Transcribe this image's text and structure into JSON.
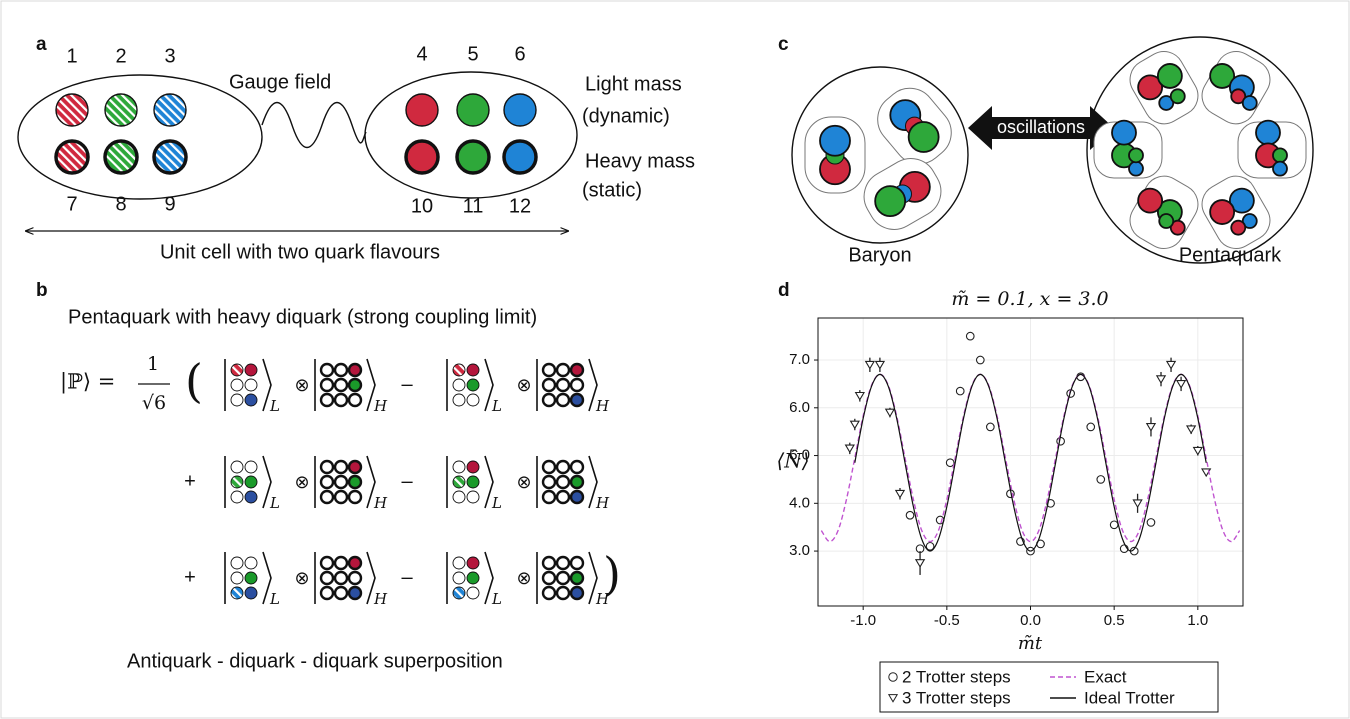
{
  "panel_a": {
    "label": "a",
    "quark_labels": [
      "1",
      "2",
      "3",
      "4",
      "5",
      "6",
      "7",
      "8",
      "9",
      "10",
      "11",
      "12"
    ],
    "gauge_field": "Gauge field",
    "light_mass": [
      "Light mass",
      "(dynamic)"
    ],
    "heavy_mass": [
      "Heavy mass",
      "(static)"
    ],
    "caption": "Unit cell with two quark flavours"
  },
  "panel_b": {
    "label": "b",
    "heading": "Pentaquark with heavy diquark (strong coupling limit)",
    "state": "|ℙ⟩ =",
    "numerator": "1",
    "denominator": "√6",
    "open_paren": "(",
    "close_paren": ")",
    "tensor": "⊗",
    "minus": "–",
    "plus": "+",
    "sub_light": "L",
    "sub_heavy": "H",
    "caption": "Antiquark - diquark - diquark superposition"
  },
  "panel_c": {
    "label": "c",
    "arrow_text": "oscillations",
    "left": "Baryon",
    "right": "Pentaquark"
  },
  "panel_d": {
    "label": "d"
  },
  "chart_data": {
    "type": "line",
    "title": "m̃ = 0.1, x = 3.0",
    "x_label": "m̃t",
    "y_label": "⟨N̂⟩",
    "xlim": [
      -1.27,
      1.27
    ],
    "ylim": [
      1.85,
      7.88
    ],
    "xticks": [
      {
        "value": -1,
        "label": "-1.0"
      },
      {
        "value": -0.5,
        "label": "-0.5"
      },
      {
        "value": 0,
        "label": "0.0"
      },
      {
        "value": 0.5,
        "label": "0.5"
      },
      {
        "value": 1,
        "label": "1.0"
      }
    ],
    "yticks": [
      {
        "value": 3,
        "label": "3.0"
      },
      {
        "value": 4,
        "label": "4.0"
      },
      {
        "value": 5,
        "label": "5.0"
      },
      {
        "value": 6,
        "label": "6.0"
      },
      {
        "value": 7,
        "label": "7.0"
      }
    ],
    "grid": true,
    "series": [
      {
        "name": "2 Trotter steps",
        "color": "#222222",
        "marker": "circle",
        "x": [
          -0.72,
          -0.66,
          -0.6,
          -0.54,
          -0.48,
          -0.42,
          -0.36,
          -0.3,
          -0.24,
          -0.12,
          -0.06,
          0,
          0.06,
          0.12,
          0.18,
          0.24,
          0.3,
          0.36,
          0.42,
          0.5,
          0.56,
          0.62,
          0.72
        ],
        "values": [
          3.75,
          3.05,
          3.1,
          3.65,
          4.85,
          6.35,
          7.5,
          7.0,
          5.6,
          4.2,
          3.2,
          3.0,
          3.15,
          4.0,
          5.3,
          6.3,
          6.65,
          5.6,
          4.5,
          3.55,
          3.05,
          3.0,
          3.6
        ]
      },
      {
        "name": "3 Trotter steps",
        "color": "#222222",
        "marker": "triangle",
        "x": [
          -1.08,
          -1.05,
          -1.02,
          -0.96,
          -0.9,
          -0.84,
          -0.78,
          -0.66,
          0.64,
          0.72,
          0.78,
          0.84,
          0.9,
          0.96,
          1.0,
          1.05
        ],
        "values": [
          5.15,
          5.65,
          6.25,
          6.9,
          6.9,
          5.9,
          4.2,
          2.75,
          4.0,
          5.6,
          6.6,
          6.9,
          6.5,
          5.55,
          5.1,
          4.65
        ],
        "errors": [
          0.12,
          0.12,
          0.12,
          0.15,
          0.15,
          0.1,
          0.12,
          0.25,
          0.2,
          0.2,
          0.15,
          0.15,
          0.15,
          0.1,
          0.1,
          0.08
        ]
      },
      {
        "name": "Exact",
        "color": "#c054d0",
        "line": "dashed",
        "x": [
          -1.25,
          -1.2,
          -1.15,
          -1.1,
          -1.05,
          -1.0,
          -0.95,
          -0.9,
          -0.85,
          -0.8,
          -0.75,
          -0.7,
          -0.65,
          -0.6,
          -0.55,
          -0.5,
          -0.45,
          -0.4,
          -0.35,
          -0.3,
          -0.25,
          -0.2,
          -0.15,
          -0.1,
          -0.05,
          0,
          0.05,
          0.1,
          0.15,
          0.2,
          0.25,
          0.3,
          0.35,
          0.4,
          0.45,
          0.5,
          0.55,
          0.6,
          0.65,
          0.7,
          0.75,
          0.8,
          0.85,
          0.9,
          0.95,
          1.0,
          1.05,
          1.1,
          1.15,
          1.2,
          1.25
        ],
        "values": [
          3.43,
          3.2,
          3.43,
          4.08,
          4.95,
          5.83,
          6.47,
          6.7,
          6.47,
          5.83,
          4.95,
          4.08,
          3.43,
          3.2,
          3.43,
          4.08,
          4.95,
          5.83,
          6.47,
          6.7,
          6.47,
          5.83,
          4.95,
          4.08,
          3.43,
          3.2,
          3.43,
          4.08,
          4.95,
          5.83,
          6.47,
          6.7,
          6.47,
          5.83,
          4.95,
          4.08,
          3.43,
          3.2,
          3.43,
          4.08,
          4.95,
          5.83,
          6.47,
          6.7,
          6.47,
          5.83,
          4.95,
          4.08,
          3.43,
          3.2,
          3.43
        ]
      },
      {
        "name": "Ideal Trotter",
        "color": "#111111",
        "line": "solid",
        "x": [
          -1.05,
          -1.0,
          -0.95,
          -0.9,
          -0.85,
          -0.8,
          -0.75,
          -0.7,
          -0.65,
          -0.6,
          -0.55,
          -0.5,
          -0.45,
          -0.4,
          -0.35,
          -0.3,
          -0.25,
          -0.2,
          -0.15,
          -0.1,
          -0.05,
          0,
          0.05,
          0.1,
          0.15,
          0.2,
          0.25,
          0.3,
          0.35,
          0.4,
          0.45,
          0.5,
          0.55,
          0.6,
          0.65,
          0.7,
          0.75,
          0.8,
          0.85,
          0.9,
          0.95,
          1.0,
          1.05
        ],
        "values": [
          4.85,
          5.78,
          6.45,
          6.7,
          6.45,
          5.78,
          4.85,
          3.93,
          3.25,
          3.0,
          3.25,
          3.93,
          4.85,
          5.78,
          6.45,
          6.7,
          6.45,
          5.78,
          4.85,
          3.93,
          3.25,
          3.0,
          3.25,
          3.93,
          4.85,
          5.78,
          6.45,
          6.7,
          6.45,
          5.78,
          4.85,
          3.93,
          3.25,
          3.0,
          3.25,
          3.93,
          4.85,
          5.78,
          6.45,
          6.7,
          6.45,
          5.78,
          4.85
        ]
      }
    ]
  }
}
